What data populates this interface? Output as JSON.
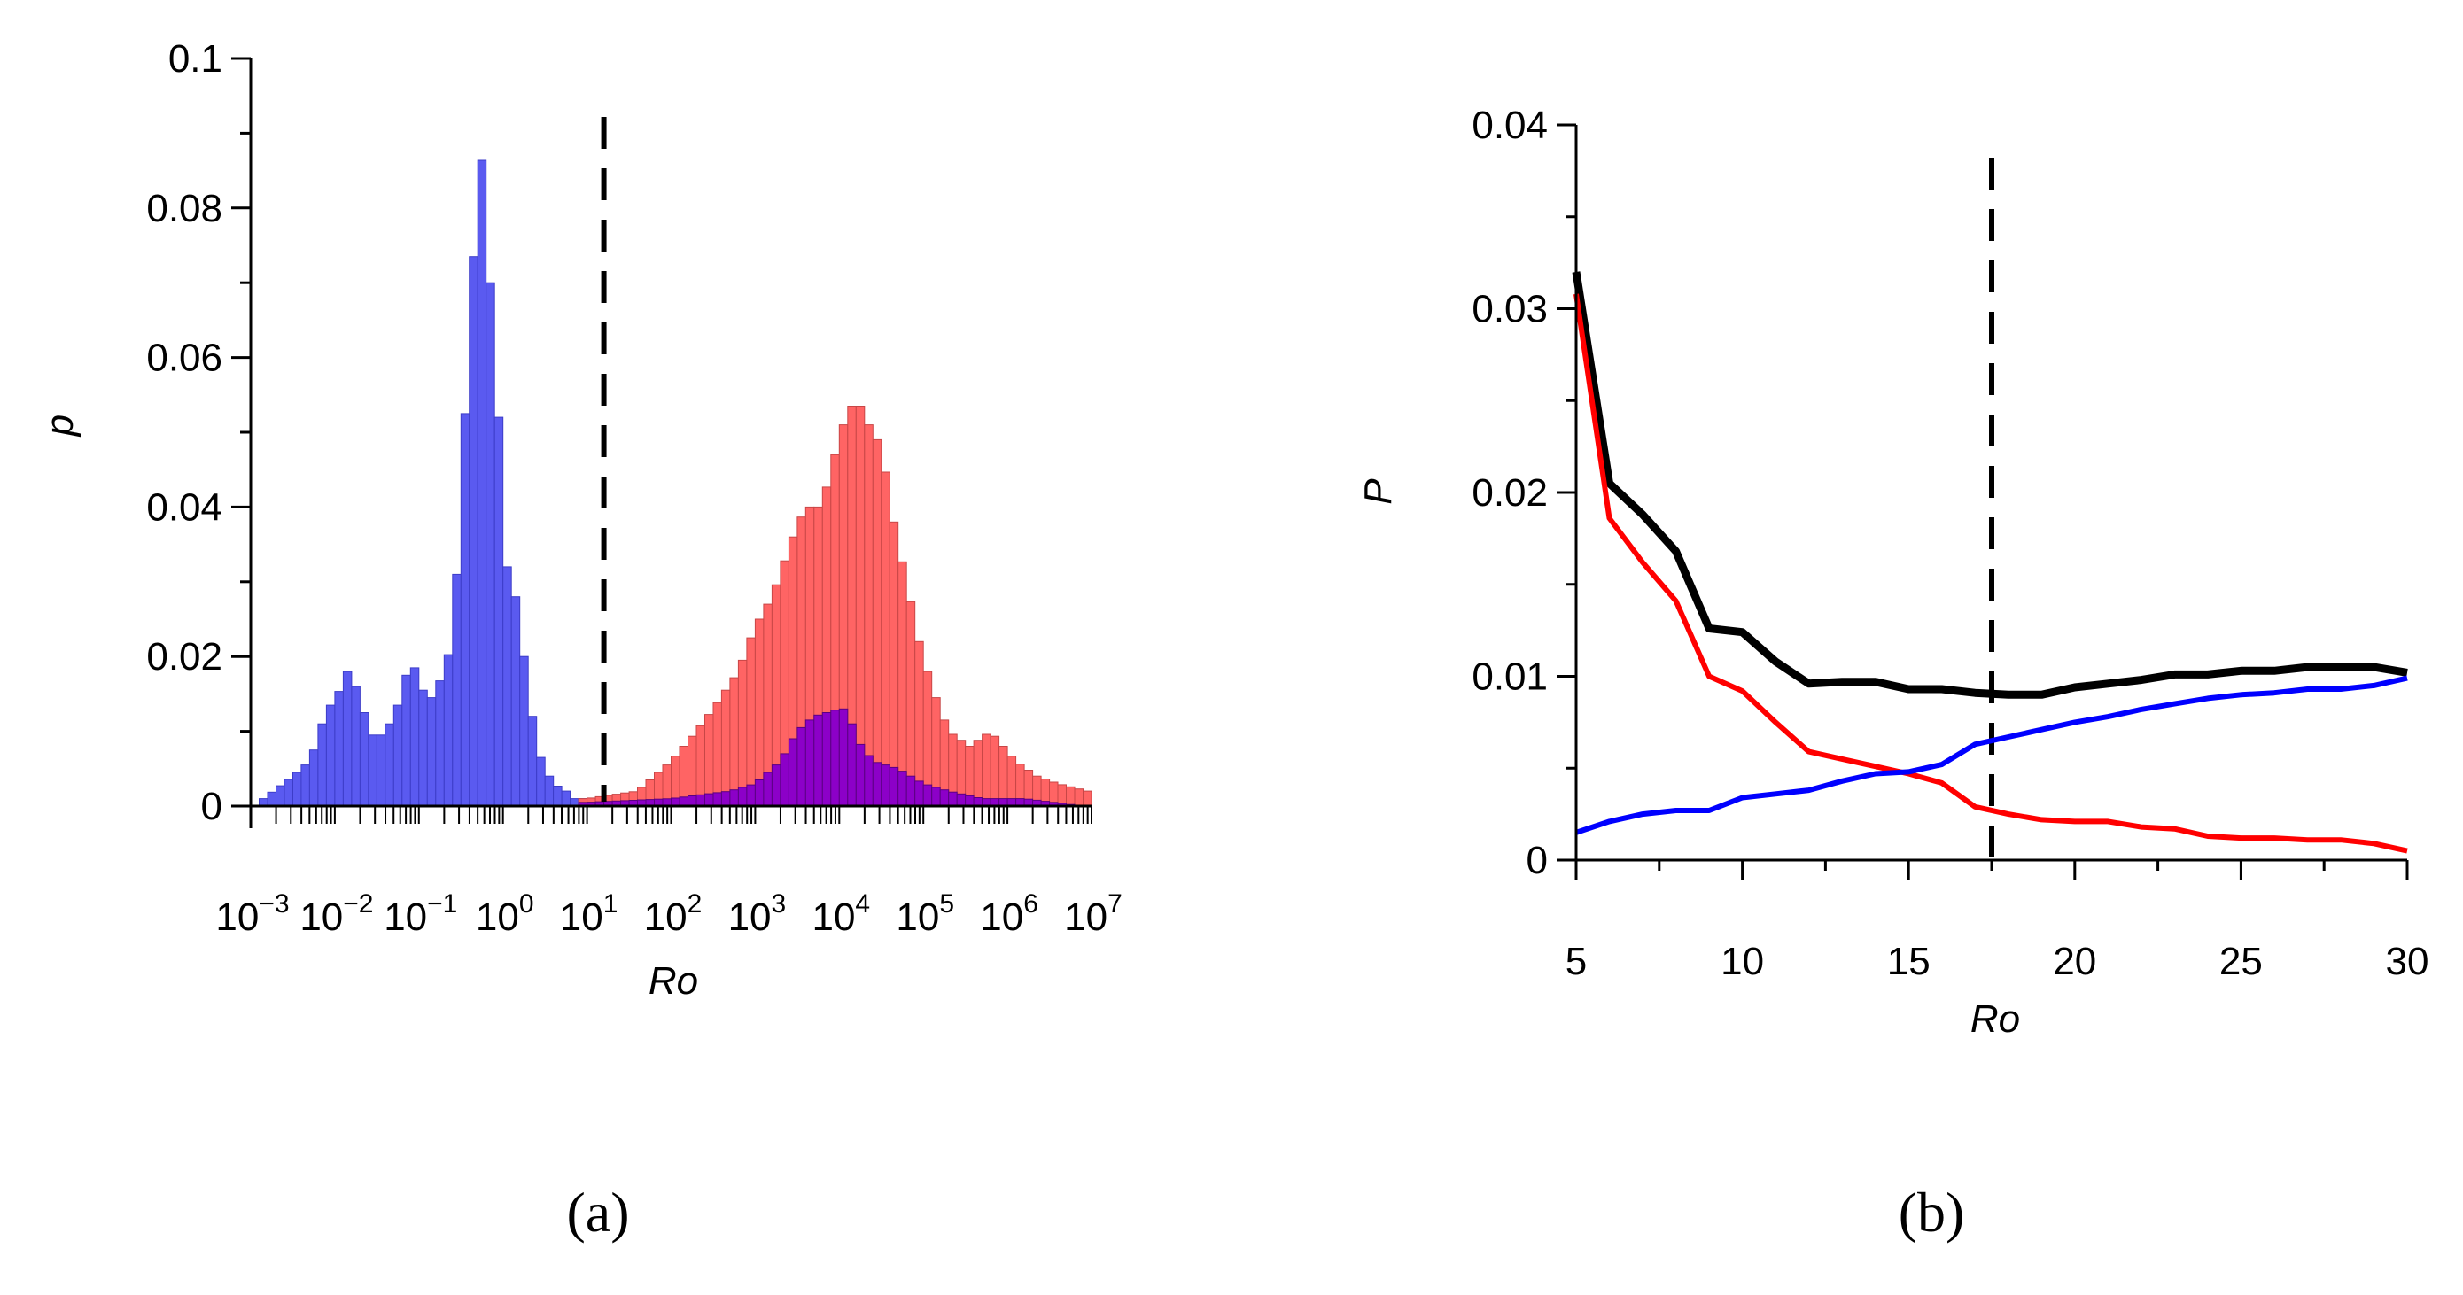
{
  "chart_data": [
    {
      "type": "bar",
      "panel_label": "(a)",
      "subtype": "overlapping histogram, log-scaled x axis",
      "xlabel": "Ro",
      "ylabel": "p",
      "xscale": "log10",
      "xlim_exp": [
        -3,
        7
      ],
      "ylim": [
        0,
        0.1
      ],
      "y_ticks": [
        0,
        0.02,
        0.04,
        0.06,
        0.08,
        0.1
      ],
      "y_tick_labels": [
        "0",
        "0.02",
        "0.04",
        "0.06",
        "0.08",
        "0.1"
      ],
      "x_tick_labels": [
        {
          "base": "10",
          "exp": "−3"
        },
        {
          "base": "10",
          "exp": "−2"
        },
        {
          "base": "10",
          "exp": "−1"
        },
        {
          "base": "10",
          "exp": "0"
        },
        {
          "base": "10",
          "exp": "1"
        },
        {
          "base": "10",
          "exp": "2"
        },
        {
          "base": "10",
          "exp": "3"
        },
        {
          "base": "10",
          "exp": "4"
        },
        {
          "base": "10",
          "exp": "5"
        },
        {
          "base": "10",
          "exp": "6"
        },
        {
          "base": "10",
          "exp": "7"
        }
      ],
      "threshold_log10": 1.2,
      "series": [
        {
          "name": "blue",
          "color": "#5a5af0",
          "points": [
            [
              -2.85,
              0.001
            ],
            [
              -2.5,
              0.004
            ],
            [
              -2.3,
              0.006
            ],
            [
              -2.2,
              0.009
            ],
            [
              -2.1,
              0.013
            ],
            [
              -2,
              0.014
            ],
            [
              -1.85,
              0.018
            ],
            [
              -1.7,
              0.015
            ],
            [
              -1.6,
              0.01
            ],
            [
              -1.5,
              0.009
            ],
            [
              -1.4,
              0.01
            ],
            [
              -1.3,
              0.012
            ],
            [
              -1.2,
              0.015
            ],
            [
              -1.1,
              0.02
            ],
            [
              -1,
              0.017
            ],
            [
              -0.9,
              0.014
            ],
            [
              -0.8,
              0.015
            ],
            [
              -0.6,
              0.022
            ],
            [
              -0.5,
              0.04
            ],
            [
              -0.4,
              0.065
            ],
            [
              -0.3,
              0.082
            ],
            [
              -0.22,
              0.089
            ],
            [
              -0.15,
              0.07
            ],
            [
              -0.05,
              0.052
            ],
            [
              0.05,
              0.032
            ],
            [
              0.15,
              0.028
            ],
            [
              0.3,
              0.016
            ],
            [
              0.4,
              0.008
            ],
            [
              0.5,
              0.005
            ],
            [
              0.6,
              0.003
            ],
            [
              0.75,
              0.002
            ],
            [
              0.85,
              0.001
            ],
            [
              1.0,
              0.001
            ],
            [
              1.3,
              0.001
            ]
          ]
        },
        {
          "name": "red",
          "color": "#ff6464",
          "points": [
            [
              1,
              0.001
            ],
            [
              1.6,
              0.002
            ],
            [
              1.8,
              0.004
            ],
            [
              2,
              0.006
            ],
            [
              2.3,
              0.01
            ],
            [
              2.5,
              0.013
            ],
            [
              2.8,
              0.018
            ],
            [
              3,
              0.024
            ],
            [
              3.2,
              0.028
            ],
            [
              3.45,
              0.036
            ],
            [
              3.6,
              0.04
            ],
            [
              3.75,
              0.04
            ],
            [
              3.9,
              0.044
            ],
            [
              4,
              0.05
            ],
            [
              4.1,
              0.052
            ],
            [
              4.2,
              0.055
            ],
            [
              4.3,
              0.052
            ],
            [
              4.5,
              0.048
            ],
            [
              4.65,
              0.038
            ],
            [
              4.8,
              0.03
            ],
            [
              4.95,
              0.022
            ],
            [
              5.1,
              0.016
            ],
            [
              5.3,
              0.01
            ],
            [
              5.55,
              0.008
            ],
            [
              5.8,
              0.01
            ],
            [
              6.1,
              0.006
            ],
            [
              6.35,
              0.004
            ],
            [
              6.6,
              0.003
            ],
            [
              6.95,
              0.002
            ]
          ]
        },
        {
          "name": "purple (overlap)",
          "color": "#8c00c8",
          "points": [
            [
              1,
              0.0005
            ],
            [
              2,
              0.001
            ],
            [
              2.7,
              0.002
            ],
            [
              3,
              0.003
            ],
            [
              3.3,
              0.006
            ],
            [
              3.5,
              0.01
            ],
            [
              3.7,
              0.012
            ],
            [
              4,
              0.013
            ],
            [
              4.1,
              0.013
            ],
            [
              4.2,
              0.009
            ],
            [
              4.4,
              0.006
            ],
            [
              4.7,
              0.005
            ],
            [
              5,
              0.003
            ],
            [
              5.3,
              0.002
            ],
            [
              5.7,
              0.001
            ],
            [
              6.2,
              0.001
            ],
            [
              6.9,
              0
            ]
          ]
        }
      ]
    },
    {
      "type": "line",
      "panel_label": "(b)",
      "xlabel": "Ro",
      "ylabel": "P",
      "xlim": [
        5,
        30
      ],
      "ylim": [
        0,
        0.04
      ],
      "x_ticks": [
        5,
        10,
        15,
        20,
        25,
        30
      ],
      "x_tick_labels": [
        "5",
        "10",
        "15",
        "20",
        "25",
        "30"
      ],
      "y_ticks": [
        0,
        0.01,
        0.02,
        0.03,
        0.04
      ],
      "y_tick_labels": [
        "0",
        "0.01",
        "0.02",
        "0.03",
        "0.04"
      ],
      "threshold": 17.5,
      "x": [
        5,
        6,
        7,
        8,
        9,
        10,
        11,
        12,
        13,
        14,
        15,
        16,
        17,
        18,
        19,
        20,
        21,
        22,
        23,
        24,
        25,
        26,
        27,
        28,
        29,
        30
      ],
      "series": [
        {
          "name": "black",
          "color": "#000000",
          "values": [
            0.032,
            0.0205,
            0.0188,
            0.0168,
            0.0126,
            0.0124,
            0.0108,
            0.0096,
            0.0097,
            0.0097,
            0.0093,
            0.0093,
            0.0091,
            0.009,
            0.009,
            0.0094,
            0.0096,
            0.0098,
            0.0101,
            0.0101,
            0.0103,
            0.0103,
            0.0105,
            0.0105,
            0.0105,
            0.0102
          ]
        },
        {
          "name": "red",
          "color": "#ff0000",
          "values": [
            0.0308,
            0.0186,
            0.0162,
            0.0141,
            0.01,
            0.0092,
            0.0075,
            0.0059,
            0.0055,
            0.0051,
            0.0047,
            0.0042,
            0.0029,
            0.0025,
            0.0022,
            0.0021,
            0.0021,
            0.0018,
            0.0017,
            0.0013,
            0.0012,
            0.0012,
            0.0011,
            0.0011,
            0.0009,
            0.0005
          ]
        },
        {
          "name": "blue",
          "color": "#0000ff",
          "values": [
            0.0015,
            0.0021,
            0.0025,
            0.0027,
            0.0027,
            0.0034,
            0.0036,
            0.0038,
            0.0043,
            0.0047,
            0.0048,
            0.0052,
            0.0063,
            0.0067,
            0.0071,
            0.0075,
            0.0078,
            0.0082,
            0.0085,
            0.0088,
            0.009,
            0.0091,
            0.0093,
            0.0093,
            0.0095,
            0.0099
          ]
        }
      ]
    }
  ]
}
